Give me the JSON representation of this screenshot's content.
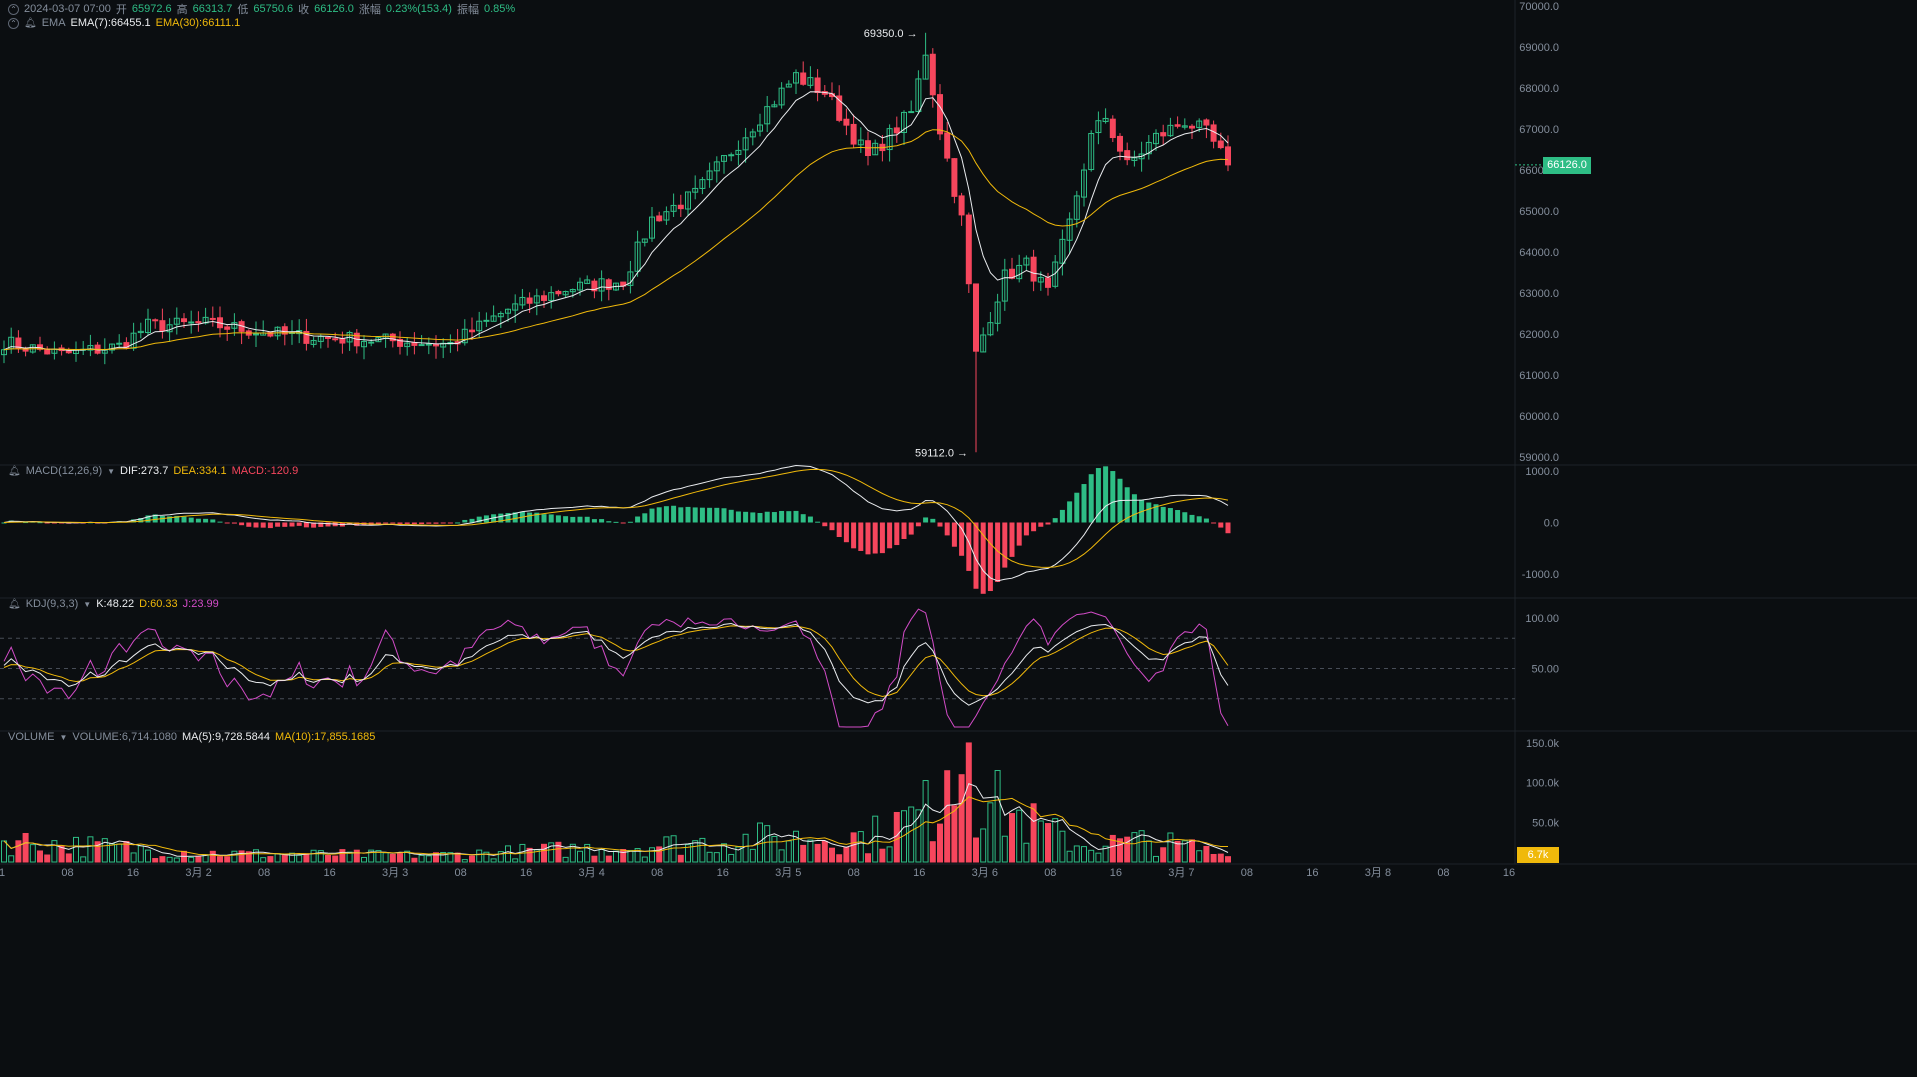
{
  "header": {
    "datetime": "2024-03-07 07:00",
    "open_label": "开",
    "open": "65972.6",
    "high_label": "高",
    "high": "66313.7",
    "low_label": "低",
    "low": "65750.6",
    "close_label": "收",
    "close": "66126.0",
    "change_label": "涨幅",
    "change": "0.23%(153.4)",
    "amp_label": "振幅",
    "amp": "0.85%",
    "ema_name": "EMA",
    "ema7": "EMA(7):66455.1",
    "ema30": "EMA(30):66111.1"
  },
  "macd_header": {
    "name": "MACD(12,26,9)",
    "dif": "DIF:273.7",
    "dea": "DEA:334.1",
    "macd": "MACD:-120.9"
  },
  "kdj_header": {
    "name": "KDJ(9,3,3)",
    "k": "K:48.22",
    "d": "D:60.33",
    "j": "J:23.99"
  },
  "vol_header": {
    "name": "VOLUME",
    "vol": "VOLUME:6,714.1080",
    "ma5": "MA(5):9,728.5844",
    "ma10": "MA(10):17,855.1685"
  },
  "price_tag": "66126.0",
  "vol_tag": "6.7k",
  "colors": {
    "up": "#2ebd85",
    "down": "#f6465d",
    "ema7": "#eaecef",
    "ema30": "#f0b90b",
    "j": "#d34cc8",
    "bg": "#0b0e11"
  },
  "chart_data": {
    "type": "candlestick",
    "interval": "1h",
    "price_axis": [
      "70000.0",
      "69000.0",
      "68000.0",
      "67000.0",
      "66000.0",
      "65000.0",
      "64000.0",
      "63000.0",
      "62000.0",
      "61000.0",
      "60000.0",
      "59000.0"
    ],
    "price_range": [
      58850,
      70150
    ],
    "annotations": {
      "max": "69350.0",
      "min": "59112.0"
    },
    "time_axis": [
      "1",
      "08",
      "16",
      "3月 2",
      "08",
      "16",
      "3月 3",
      "08",
      "16",
      "3月 4",
      "08",
      "16",
      "3月 5",
      "08",
      "16",
      "3月 6",
      "08",
      "16",
      "3月 7",
      "08",
      "16",
      "3月 8",
      "08",
      "16"
    ],
    "close_keys": [
      [
        0,
        61800
      ],
      [
        8,
        61500
      ],
      [
        16,
        61700
      ],
      [
        20,
        62200
      ],
      [
        28,
        62250
      ],
      [
        40,
        61950
      ],
      [
        52,
        61850
      ],
      [
        62,
        61750
      ],
      [
        70,
        62600
      ],
      [
        78,
        63100
      ],
      [
        86,
        63300
      ],
      [
        90,
        64800
      ],
      [
        96,
        65400
      ],
      [
        104,
        67100
      ],
      [
        110,
        68300
      ],
      [
        114,
        67900
      ],
      [
        120,
        66300
      ],
      [
        126,
        67400
      ],
      [
        128,
        68900
      ],
      [
        130,
        67000
      ],
      [
        133,
        64800
      ],
      [
        135,
        61500
      ],
      [
        139,
        63400
      ],
      [
        142,
        63700
      ],
      [
        145,
        63000
      ],
      [
        148,
        64700
      ],
      [
        151,
        66800
      ],
      [
        153,
        67300
      ],
      [
        156,
        66100
      ],
      [
        160,
        66800
      ],
      [
        164,
        67200
      ],
      [
        167,
        66900
      ],
      [
        169,
        66400
      ],
      [
        170,
        66126
      ]
    ],
    "macd_axis": [
      "1000.0",
      "0.0",
      "-1000.0"
    ],
    "macd_range": [
      -1450,
      1080
    ],
    "kdj_axis": [
      "100.00",
      "50.00"
    ],
    "kdj_range": [
      -10,
      117
    ],
    "vol_axis": [
      "150.0k",
      "100.0k",
      "50.0k"
    ],
    "vol_range": [
      0,
      160000
    ],
    "vol_keys": [
      [
        0,
        25000
      ],
      [
        30,
        10000
      ],
      [
        60,
        8000
      ],
      [
        90,
        20000
      ],
      [
        105,
        28000
      ],
      [
        120,
        30000
      ],
      [
        128,
        60000
      ],
      [
        134,
        95000
      ],
      [
        137,
        70000
      ],
      [
        145,
        35000
      ],
      [
        150,
        20000
      ],
      [
        158,
        25000
      ],
      [
        165,
        18000
      ],
      [
        170,
        6714
      ]
    ]
  }
}
